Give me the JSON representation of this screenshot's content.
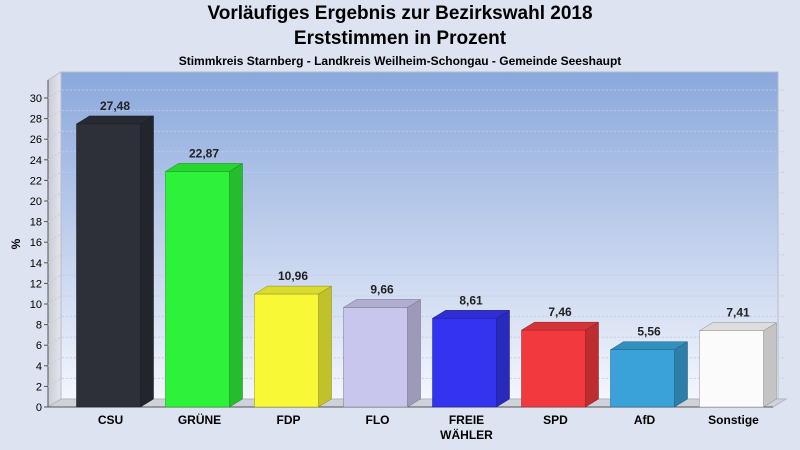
{
  "chart_data": {
    "type": "bar",
    "title": "Vorläufiges Ergebnis zur Bezirkswahl 2018",
    "subtitle": "Erststimmen in Prozent",
    "caption": "Stimmkreis Starnberg - Landkreis Weilheim-Schongau - Gemeinde Seeshaupt",
    "ylabel": "%",
    "xlabel": "",
    "ylim": [
      0,
      30
    ],
    "yticks": [
      0,
      2,
      4,
      6,
      8,
      10,
      12,
      14,
      16,
      18,
      20,
      22,
      24,
      26,
      28,
      30
    ],
    "grid": true,
    "categories": [
      {
        "label": "CSU",
        "color": "#2d3038"
      },
      {
        "label": "GRÜNE",
        "color": "#2ef23a"
      },
      {
        "label": "FDP",
        "color": "#f8f836"
      },
      {
        "label": "FLO",
        "color": "#c8c6ec"
      },
      {
        "label": "FREIE",
        "label2": "WÄHLER",
        "color": "#3434f0"
      },
      {
        "label": "SPD",
        "color": "#f23a3e"
      },
      {
        "label": "AfD",
        "color": "#3aa2d8"
      },
      {
        "label": "Sonstige",
        "color": "#fbfbfb"
      }
    ],
    "values": [
      27.48,
      22.87,
      10.96,
      9.66,
      8.61,
      7.46,
      5.56,
      7.41
    ],
    "value_labels": [
      "27,48",
      "22,87",
      "10,96",
      "9,66",
      "8,61",
      "7,46",
      "5,56",
      "7,41"
    ]
  }
}
